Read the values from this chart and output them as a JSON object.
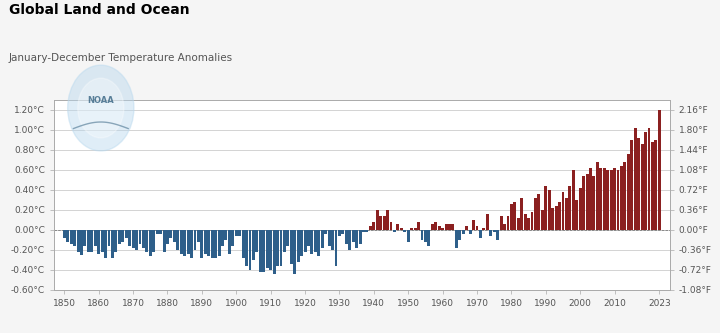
{
  "title": "Global Land and Ocean",
  "subtitle": "January-December Temperature Anomalies",
  "bg_color": "#f5f5f5",
  "plot_bg_color": "#ffffff",
  "bar_color_pos": "#8B2020",
  "bar_color_neg": "#2E5F8A",
  "grid_color": "#cccccc",
  "ylim": [
    -0.6,
    1.3
  ],
  "yticks_left": [
    -0.6,
    -0.4,
    -0.2,
    0.0,
    0.2,
    0.4,
    0.6,
    0.8,
    1.0,
    1.2
  ],
  "yticks_right": [
    -1.08,
    -0.72,
    -0.36,
    0.0,
    0.36,
    0.72,
    1.08,
    1.44,
    1.8,
    2.16
  ],
  "xticks": [
    1850,
    1860,
    1870,
    1880,
    1890,
    1900,
    1910,
    1920,
    1930,
    1940,
    1950,
    1960,
    1970,
    1980,
    1990,
    2000,
    2010,
    2023
  ],
  "years": [
    1850,
    1851,
    1852,
    1853,
    1854,
    1855,
    1856,
    1857,
    1858,
    1859,
    1860,
    1861,
    1862,
    1863,
    1864,
    1865,
    1866,
    1867,
    1868,
    1869,
    1870,
    1871,
    1872,
    1873,
    1874,
    1875,
    1876,
    1877,
    1878,
    1879,
    1880,
    1881,
    1882,
    1883,
    1884,
    1885,
    1886,
    1887,
    1888,
    1889,
    1890,
    1891,
    1892,
    1893,
    1894,
    1895,
    1896,
    1897,
    1898,
    1899,
    1900,
    1901,
    1902,
    1903,
    1904,
    1905,
    1906,
    1907,
    1908,
    1909,
    1910,
    1911,
    1912,
    1913,
    1914,
    1915,
    1916,
    1917,
    1918,
    1919,
    1920,
    1921,
    1922,
    1923,
    1924,
    1925,
    1926,
    1927,
    1928,
    1929,
    1930,
    1931,
    1932,
    1933,
    1934,
    1935,
    1936,
    1937,
    1938,
    1939,
    1940,
    1941,
    1942,
    1943,
    1944,
    1945,
    1946,
    1947,
    1948,
    1949,
    1950,
    1951,
    1952,
    1953,
    1954,
    1955,
    1956,
    1957,
    1958,
    1959,
    1960,
    1961,
    1962,
    1963,
    1964,
    1965,
    1966,
    1967,
    1968,
    1969,
    1970,
    1971,
    1972,
    1973,
    1974,
    1975,
    1976,
    1977,
    1978,
    1979,
    1980,
    1981,
    1982,
    1983,
    1984,
    1985,
    1986,
    1987,
    1988,
    1989,
    1990,
    1991,
    1992,
    1993,
    1994,
    1995,
    1996,
    1997,
    1998,
    1999,
    2000,
    2001,
    2002,
    2003,
    2004,
    2005,
    2006,
    2007,
    2008,
    2009,
    2010,
    2011,
    2012,
    2013,
    2014,
    2015,
    2016,
    2017,
    2018,
    2019,
    2020,
    2021,
    2022,
    2023
  ],
  "anomalies": [
    -0.08,
    -0.12,
    -0.14,
    -0.16,
    -0.22,
    -0.25,
    -0.16,
    -0.22,
    -0.22,
    -0.16,
    -0.24,
    -0.22,
    -0.28,
    -0.16,
    -0.28,
    -0.22,
    -0.14,
    -0.12,
    -0.08,
    -0.16,
    -0.18,
    -0.2,
    -0.14,
    -0.18,
    -0.22,
    -0.26,
    -0.22,
    -0.04,
    -0.04,
    -0.22,
    -0.14,
    -0.08,
    -0.12,
    -0.2,
    -0.24,
    -0.26,
    -0.24,
    -0.28,
    -0.2,
    -0.12,
    -0.28,
    -0.24,
    -0.26,
    -0.28,
    -0.28,
    -0.26,
    -0.16,
    -0.1,
    -0.24,
    -0.16,
    -0.06,
    -0.06,
    -0.28,
    -0.36,
    -0.4,
    -0.3,
    -0.22,
    -0.42,
    -0.42,
    -0.38,
    -0.4,
    -0.44,
    -0.36,
    -0.36,
    -0.22,
    -0.16,
    -0.34,
    -0.44,
    -0.32,
    -0.26,
    -0.22,
    -0.16,
    -0.24,
    -0.22,
    -0.26,
    -0.18,
    -0.04,
    -0.16,
    -0.2,
    -0.36,
    -0.06,
    -0.04,
    -0.14,
    -0.2,
    -0.12,
    -0.18,
    -0.14,
    -0.02,
    -0.02,
    0.04,
    0.08,
    0.2,
    0.14,
    0.14,
    0.2,
    0.08,
    -0.02,
    0.06,
    0.02,
    -0.02,
    -0.12,
    0.02,
    0.02,
    0.08,
    -0.1,
    -0.12,
    -0.16,
    0.06,
    0.08,
    0.04,
    0.02,
    0.06,
    0.06,
    0.06,
    -0.18,
    -0.1,
    -0.04,
    0.04,
    -0.04,
    0.1,
    0.04,
    -0.08,
    0.02,
    0.16,
    -0.06,
    -0.02,
    -0.1,
    0.14,
    0.06,
    0.14,
    0.26,
    0.28,
    0.12,
    0.32,
    0.16,
    0.12,
    0.18,
    0.32,
    0.36,
    0.2,
    0.44,
    0.4,
    0.22,
    0.24,
    0.28,
    0.38,
    0.32,
    0.44,
    0.6,
    0.3,
    0.42,
    0.54,
    0.56,
    0.62,
    0.54,
    0.68,
    0.62,
    0.62,
    0.6,
    0.6,
    0.62,
    0.6,
    0.64,
    0.68,
    0.76,
    0.9,
    1.02,
    0.92,
    0.86,
    0.98,
    1.02,
    0.88,
    0.9,
    1.2
  ]
}
